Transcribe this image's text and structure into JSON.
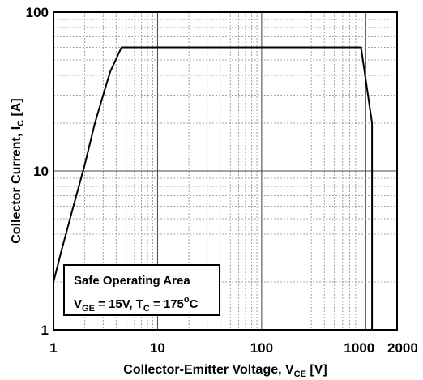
{
  "chart_data": {
    "type": "line",
    "xscale": "log",
    "yscale": "log",
    "xlim": [
      1,
      2000
    ],
    "ylim": [
      1,
      100
    ],
    "grid": true,
    "xlabel": {
      "main": "Collector-Emitter Voltage, V",
      "sub": "CE",
      "unit": " [V]"
    },
    "ylabel": {
      "main": "Collector Current, I",
      "sub": "C",
      "unit": " [A]"
    },
    "x_ticks": [
      {
        "value": 1,
        "label": "1"
      },
      {
        "value": 10,
        "label": "10"
      },
      {
        "value": 100,
        "label": "100"
      },
      {
        "value": 1000,
        "label": "1000"
      },
      {
        "value": 2000,
        "label": "2000"
      }
    ],
    "y_ticks": [
      {
        "value": 1,
        "label": "1"
      },
      {
        "value": 10,
        "label": "10"
      },
      {
        "value": 100,
        "label": "100"
      }
    ],
    "series": [
      {
        "x": [
          1,
          1.2,
          1.5,
          2,
          2.5,
          3,
          3.5,
          4.5,
          900,
          1150,
          1150
        ],
        "y": [
          2,
          3.2,
          5.5,
          11,
          20,
          30,
          42,
          60,
          60,
          20,
          1
        ]
      }
    ],
    "annotation": {
      "line1": "Safe Operating Area",
      "line2_parts": [
        {
          "t": "V",
          "sub": false
        },
        {
          "t": "GE",
          "sub": true
        },
        {
          "t": " = 15V, T",
          "sub": false
        },
        {
          "t": "C",
          "sub": true
        },
        {
          "t": " = 175",
          "sub": false
        },
        {
          "t": "o",
          "sup": true
        },
        {
          "t": "C",
          "sub": false
        }
      ]
    }
  }
}
